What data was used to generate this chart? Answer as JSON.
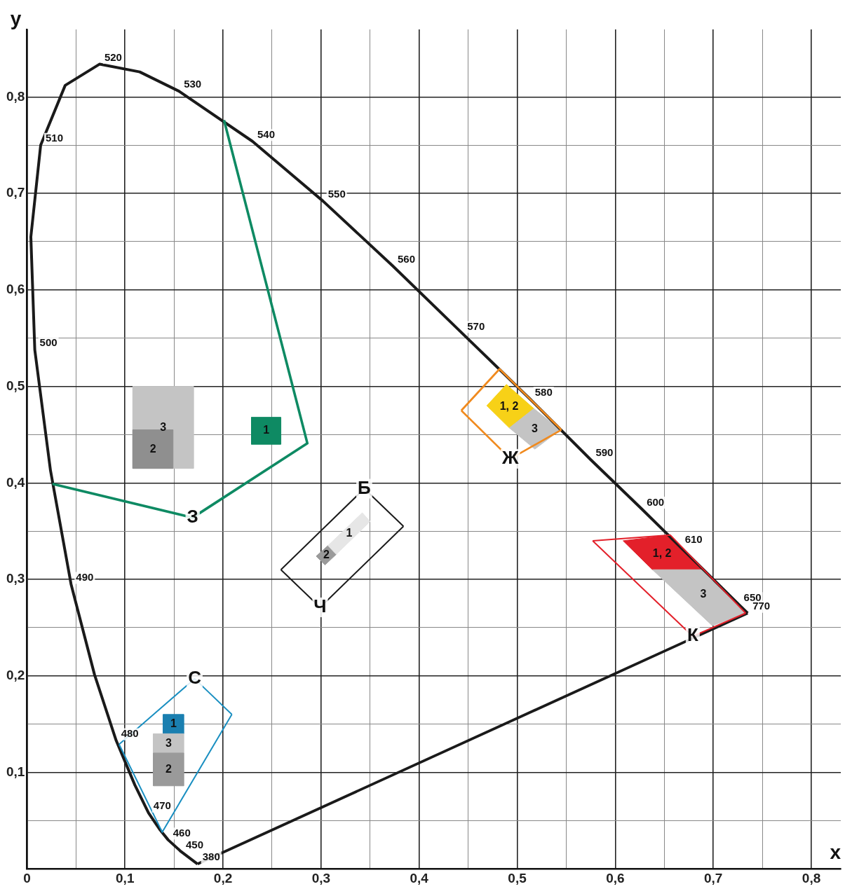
{
  "chart_data": {
    "type": "line",
    "xlabel": "x",
    "ylabel": "y",
    "xlim": [
      0,
      0.83
    ],
    "ylim": [
      0,
      0.87
    ],
    "xticks": [
      {
        "value": 0,
        "label": "0"
      },
      {
        "value": 0.05,
        "label": null
      },
      {
        "value": 0.1,
        "label": "0,1"
      },
      {
        "value": 0.15,
        "label": null
      },
      {
        "value": 0.2,
        "label": "0,2"
      },
      {
        "value": 0.25,
        "label": null
      },
      {
        "value": 0.3,
        "label": "0,3"
      },
      {
        "value": 0.35,
        "label": null
      },
      {
        "value": 0.4,
        "label": "0,4"
      },
      {
        "value": 0.45,
        "label": null
      },
      {
        "value": 0.5,
        "label": "0,5"
      },
      {
        "value": 0.55,
        "label": null
      },
      {
        "value": 0.6,
        "label": "0,6"
      },
      {
        "value": 0.65,
        "label": null
      },
      {
        "value": 0.7,
        "label": "0,7"
      },
      {
        "value": 0.75,
        "label": null
      },
      {
        "value": 0.8,
        "label": "0,8"
      }
    ],
    "yticks": [
      {
        "value": 0,
        "label": null
      },
      {
        "value": 0.05,
        "label": null
      },
      {
        "value": 0.1,
        "label": "0,1"
      },
      {
        "value": 0.15,
        "label": null
      },
      {
        "value": 0.2,
        "label": "0,2"
      },
      {
        "value": 0.25,
        "label": null
      },
      {
        "value": 0.3,
        "label": "0,3"
      },
      {
        "value": 0.35,
        "label": null
      },
      {
        "value": 0.4,
        "label": "0,4"
      },
      {
        "value": 0.45,
        "label": null
      },
      {
        "value": 0.5,
        "label": "0,5"
      },
      {
        "value": 0.55,
        "label": null
      },
      {
        "value": 0.6,
        "label": "0,6"
      },
      {
        "value": 0.65,
        "label": null
      },
      {
        "value": 0.7,
        "label": "0,7"
      },
      {
        "value": 0.75,
        "label": null
      },
      {
        "value": 0.8,
        "label": "0,8"
      }
    ],
    "grid": true,
    "legend": false,
    "marker": "none",
    "series": [
      {
        "color": "#1a1a1a",
        "x": [
          0.174,
          0.157,
          0.144,
          0.136,
          0.124,
          0.11,
          0.091,
          0.069,
          0.045,
          0.024,
          0.008,
          0.004,
          0.014,
          0.039,
          0.074,
          0.115,
          0.155,
          0.23,
          0.302,
          0.373,
          0.444,
          0.513,
          0.575,
          0.627,
          0.666,
          0.726,
          0.735
        ],
        "values": [
          0.005,
          0.018,
          0.03,
          0.04,
          0.058,
          0.087,
          0.133,
          0.201,
          0.295,
          0.413,
          0.538,
          0.655,
          0.75,
          0.812,
          0.834,
          0.826,
          0.806,
          0.754,
          0.692,
          0.625,
          0.555,
          0.487,
          0.424,
          0.373,
          0.334,
          0.274,
          0.265
        ]
      },
      {
        "color": "#1a1a1a",
        "x": [
          0.735,
          0.174
        ],
        "values": [
          0.265,
          0.005
        ]
      },
      {
        "name": "З",
        "color": "#0e8a63",
        "x": [
          0.201,
          0.286,
          0.169,
          0.026
        ],
        "values": [
          0.776,
          0.441,
          0.364,
          0.399
        ]
      },
      {
        "type": "area",
        "name": "3",
        "color": "#c4c4c4",
        "x": [
          0.108,
          0.17,
          0.17,
          0.108,
          0.108
        ],
        "values": [
          0.415,
          0.415,
          0.5,
          0.5,
          0.415
        ]
      },
      {
        "type": "area",
        "name": "2",
        "color": "#8f8f8f",
        "x": [
          0.108,
          0.149,
          0.149,
          0.108,
          0.108
        ],
        "values": [
          0.415,
          0.415,
          0.455,
          0.455,
          0.415
        ]
      },
      {
        "type": "area",
        "name": "1",
        "color": "#0e8a63",
        "x": [
          0.229,
          0.259,
          0.259,
          0.229,
          0.229
        ],
        "values": [
          0.44,
          0.44,
          0.468,
          0.468,
          0.44
        ]
      },
      {
        "color": "#f08a1e",
        "x": [
          0.443,
          0.482,
          0.545
        ],
        "values": [
          0.475,
          0.518,
          0.455
        ]
      },
      {
        "name": "Ж",
        "color": "#f08a1e",
        "x": [
          0.443,
          0.493,
          0.545
        ],
        "values": [
          0.475,
          0.425,
          0.455
        ]
      },
      {
        "type": "area",
        "name": "1, 2",
        "color": "#f7d117",
        "x": [
          0.469,
          0.489,
          0.517,
          0.492,
          0.469
        ],
        "values": [
          0.48,
          0.502,
          0.477,
          0.457,
          0.48
        ]
      },
      {
        "type": "area",
        "name": "3",
        "color": "#c4c4c4",
        "x": [
          0.492,
          0.517,
          0.544,
          0.518,
          0.492
        ],
        "values": [
          0.457,
          0.477,
          0.455,
          0.435,
          0.457
        ]
      },
      {
        "color": "#e3202a",
        "x": [
          0.577,
          0.656,
          0.733
        ],
        "values": [
          0.34,
          0.346,
          0.265
        ]
      },
      {
        "name": "К",
        "color": "#e3202a",
        "x": [
          0.577,
          0.679,
          0.733
        ],
        "values": [
          0.34,
          0.241,
          0.265
        ]
      },
      {
        "type": "area",
        "name": "1, 2",
        "color": "#e3202a",
        "x": [
          0.608,
          0.656,
          0.689,
          0.638,
          0.608
        ],
        "values": [
          0.34,
          0.346,
          0.31,
          0.31,
          0.34
        ]
      },
      {
        "type": "area",
        "name": "3",
        "color": "#c4c4c4",
        "x": [
          0.638,
          0.689,
          0.733,
          0.699,
          0.638
        ],
        "values": [
          0.31,
          0.31,
          0.265,
          0.252,
          0.31
        ]
      },
      {
        "name": "С",
        "color": "#1a8fc1",
        "x": [
          0.094,
          0.171,
          0.209
        ],
        "values": [
          0.129,
          0.197,
          0.16
        ]
      },
      {
        "color": "#1a8fc1",
        "x": [
          0.094,
          0.138,
          0.209
        ],
        "values": [
          0.129,
          0.038,
          0.16
        ]
      },
      {
        "type": "area",
        "name": "1",
        "color": "#1a7fb0",
        "x": [
          0.139,
          0.16,
          0.16,
          0.139,
          0.139
        ],
        "values": [
          0.14,
          0.14,
          0.16,
          0.16,
          0.14
        ]
      },
      {
        "type": "area",
        "name": "3",
        "color": "#c4c4c4",
        "x": [
          0.129,
          0.16,
          0.16,
          0.129,
          0.129
        ],
        "values": [
          0.12,
          0.12,
          0.14,
          0.14,
          0.12
        ]
      },
      {
        "type": "area",
        "name": "2",
        "color": "#9a9a9a",
        "x": [
          0.129,
          0.16,
          0.16,
          0.129,
          0.129
        ],
        "values": [
          0.086,
          0.086,
          0.12,
          0.12,
          0.086
        ]
      },
      {
        "name": "Б",
        "color": "#1a1a1a",
        "x": [
          0.259,
          0.344,
          0.384
        ],
        "values": [
          0.31,
          0.394,
          0.355
        ]
      },
      {
        "name": "Ч",
        "color": "#1a1a1a",
        "x": [
          0.259,
          0.299,
          0.384
        ],
        "values": [
          0.31,
          0.271,
          0.355
        ]
      },
      {
        "type": "area",
        "name": "2",
        "color": "#9a9a9a",
        "x": [
          0.295,
          0.307,
          0.3155,
          0.304,
          0.295
        ],
        "values": [
          0.324,
          0.335,
          0.326,
          0.315,
          0.324
        ]
      },
      {
        "type": "area",
        "name": "1",
        "color": "#e6e6e6",
        "x": [
          0.307,
          0.342,
          0.35,
          0.3155,
          0.307
        ],
        "values": [
          0.335,
          0.369,
          0.36,
          0.326,
          0.335
        ]
      }
    ],
    "annotations": [
      {
        "text": "380",
        "x": 0.174,
        "y": 0.005
      },
      {
        "text": "450",
        "x": 0.157,
        "y": 0.018
      },
      {
        "text": "460",
        "x": 0.144,
        "y": 0.03
      },
      {
        "text": "470",
        "x": 0.124,
        "y": 0.058
      },
      {
        "text": "480",
        "x": 0.091,
        "y": 0.133
      },
      {
        "text": "490",
        "x": 0.045,
        "y": 0.295
      },
      {
        "text": "500",
        "x": 0.008,
        "y": 0.538
      },
      {
        "text": "510",
        "x": 0.014,
        "y": 0.75
      },
      {
        "text": "520",
        "x": 0.074,
        "y": 0.834
      },
      {
        "text": "530",
        "x": 0.155,
        "y": 0.806
      },
      {
        "text": "540",
        "x": 0.23,
        "y": 0.754
      },
      {
        "text": "550",
        "x": 0.302,
        "y": 0.692
      },
      {
        "text": "560",
        "x": 0.373,
        "y": 0.625
      },
      {
        "text": "570",
        "x": 0.444,
        "y": 0.555
      },
      {
        "text": "580",
        "x": 0.513,
        "y": 0.487
      },
      {
        "text": "590",
        "x": 0.575,
        "y": 0.424
      },
      {
        "text": "600",
        "x": 0.627,
        "y": 0.373
      },
      {
        "text": "610",
        "x": 0.666,
        "y": 0.334
      },
      {
        "text": "650",
        "x": 0.726,
        "y": 0.274
      },
      {
        "text": "770",
        "x": 0.735,
        "y": 0.265
      }
    ]
  }
}
